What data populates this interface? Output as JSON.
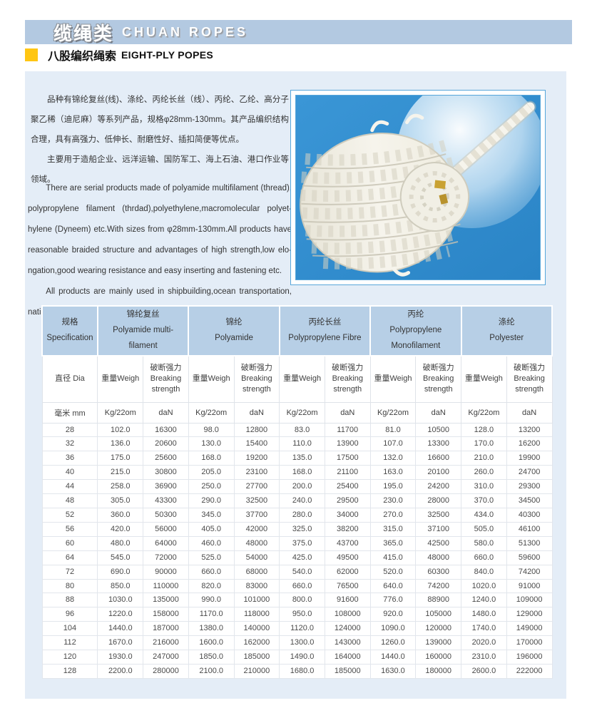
{
  "banner": {
    "title_zh": "缆绳类",
    "title_en": "CHUAN ROPES"
  },
  "section": {
    "title_zh": "八股编织绳索",
    "title_en": "EIGHT-PLY POPES"
  },
  "intro": {
    "zh": [
      "品种有锦纶复丝(线)、涤纶、丙纶长丝（线）、丙纶、乙纶、高分子聚乙稀（迪尼麻）等系列产品，规格φ28mm-130mm。其产品编织结构合理，具有高强力、低伸长、耐磨性好、插扣简便等优点。",
      "主要用于造船企业、远洋运输、国防军工、海上石油、港口作业等领域。"
    ],
    "en": [
      "There are serial products made of polyamide multifilament (thread), polypropylene filament (thrdad),polyethylene,macromolecular polyet-hylene (Dyneem) etc.With sizes from φ28mm-130mm.All products have reasonable braided structure and advantages of high strength,low elo-ngation,good wearing resistance and easy inserting and fastening etc.",
      "All products are mainly used in shipbuilding,ocean transportation, national defense and military industry,ocean petroleum,harbor works etc."
    ]
  },
  "photo": {
    "description": "white eight-ply braided rope coil on blue background with light sphere",
    "bg_color": "#2e8ccf",
    "frame_color": "#58a6da"
  },
  "colors": {
    "banner": "#b3c9e1",
    "panel": "#e4edf7",
    "table_header": "#b7cfe6",
    "accent_yellow": "#ffc613"
  },
  "table": {
    "groups": [
      {
        "zh": "规格",
        "en": "Specification"
      },
      {
        "zh": "锦纶复丝",
        "en": "Polyamide multi-filament"
      },
      {
        "zh": "锦纶",
        "en": "Polyamide"
      },
      {
        "zh": "丙纶长丝",
        "en": "Polypropylene Fibre"
      },
      {
        "zh": "丙纶",
        "en": "Polypropylene Monofilament"
      },
      {
        "zh": "涤纶",
        "en": "Polyester"
      }
    ],
    "sub": {
      "dia": "直径 Dia",
      "weight": "重量Weigh",
      "strength_zh": "破断强力",
      "strength_en": "Breaking strength"
    },
    "units": {
      "dia": "毫米 mm",
      "weight": "Kg/22om",
      "strength": "daN"
    },
    "rows": [
      [
        "28",
        "102.0",
        "16300",
        "98.0",
        "12800",
        "83.0",
        "11700",
        "81.0",
        "10500",
        "128.0",
        "13200"
      ],
      [
        "32",
        "136.0",
        "20600",
        "130.0",
        "15400",
        "110.0",
        "13900",
        "107.0",
        "13300",
        "170.0",
        "16200"
      ],
      [
        "36",
        "175.0",
        "25600",
        "168.0",
        "19200",
        "135.0",
        "17500",
        "132.0",
        "16600",
        "210.0",
        "19900"
      ],
      [
        "40",
        "215.0",
        "30800",
        "205.0",
        "23100",
        "168.0",
        "21100",
        "163.0",
        "20100",
        "260.0",
        "24700"
      ],
      [
        "44",
        "258.0",
        "36900",
        "250.0",
        "27700",
        "200.0",
        "25400",
        "195.0",
        "24200",
        "310.0",
        "29300"
      ],
      [
        "48",
        "305.0",
        "43300",
        "290.0",
        "32500",
        "240.0",
        "29500",
        "230.0",
        "28000",
        "370.0",
        "34500"
      ],
      [
        "52",
        "360.0",
        "50300",
        "345.0",
        "37700",
        "280.0",
        "34000",
        "270.0",
        "32500",
        "434.0",
        "40300"
      ],
      [
        "56",
        "420.0",
        "56000",
        "405.0",
        "42000",
        "325.0",
        "38200",
        "315.0",
        "37100",
        "505.0",
        "46100"
      ],
      [
        "60",
        "480.0",
        "64000",
        "460.0",
        "48000",
        "375.0",
        "43700",
        "365.0",
        "42500",
        "580.0",
        "51300"
      ],
      [
        "64",
        "545.0",
        "72000",
        "525.0",
        "54000",
        "425.0",
        "49500",
        "415.0",
        "48000",
        "660.0",
        "59600"
      ],
      [
        "72",
        "690.0",
        "90000",
        "660.0",
        "68000",
        "540.0",
        "62000",
        "520.0",
        "60300",
        "840.0",
        "74200"
      ],
      [
        "80",
        "850.0",
        "110000",
        "820.0",
        "83000",
        "660.0",
        "76500",
        "640.0",
        "74200",
        "1020.0",
        "91000"
      ],
      [
        "88",
        "1030.0",
        "135000",
        "990.0",
        "101000",
        "800.0",
        "91600",
        "776.0",
        "88900",
        "1240.0",
        "109000"
      ],
      [
        "96",
        "1220.0",
        "158000",
        "1170.0",
        "118000",
        "950.0",
        "108000",
        "920.0",
        "105000",
        "1480.0",
        "129000"
      ],
      [
        "104",
        "1440.0",
        "187000",
        "1380.0",
        "140000",
        "1120.0",
        "124000",
        "1090.0",
        "120000",
        "1740.0",
        "149000"
      ],
      [
        "112",
        "1670.0",
        "216000",
        "1600.0",
        "162000",
        "1300.0",
        "143000",
        "1260.0",
        "139000",
        "2020.0",
        "170000"
      ],
      [
        "120",
        "1930.0",
        "247000",
        "1850.0",
        "185000",
        "1490.0",
        "164000",
        "1440.0",
        "160000",
        "2310.0",
        "196000"
      ],
      [
        "128",
        "2200.0",
        "280000",
        "2100.0",
        "210000",
        "1680.0",
        "185000",
        "1630.0",
        "180000",
        "2600.0",
        "222000"
      ]
    ]
  }
}
